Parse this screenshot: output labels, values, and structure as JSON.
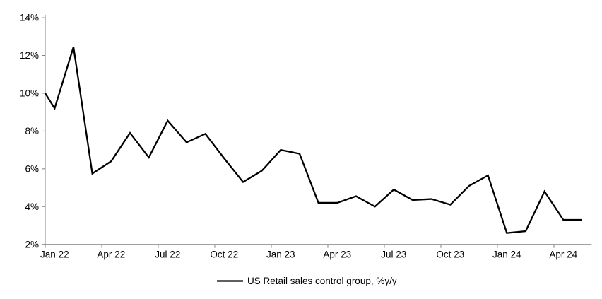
{
  "chart_data": {
    "type": "line",
    "title": "",
    "legend_label": "US Retail sales control group, %y/y",
    "legend_position": "bottom-center",
    "grid": "off",
    "ylim": [
      2,
      14
    ],
    "x": [
      "Jan 22",
      "Feb 22",
      "Mar 22",
      "Apr 22",
      "May 22",
      "Jun 22",
      "Jul 22",
      "Aug 22",
      "Sep 22",
      "Oct 22",
      "Nov 22",
      "Dec 22",
      "Jan 23",
      "Feb 23",
      "Mar 23",
      "Apr 23",
      "May 23",
      "Jun 23",
      "Jul 23",
      "Aug 23",
      "Sep 23",
      "Oct 23",
      "Nov 23",
      "Dec 23",
      "Jan 24",
      "Feb 24",
      "Mar 24",
      "Apr 24",
      "May 24"
    ],
    "series": [
      {
        "name": "US Retail sales control group, %y/y",
        "color": "#000000",
        "values": [
          9.2,
          12.45,
          5.75,
          6.4,
          7.9,
          6.6,
          8.55,
          7.4,
          7.85,
          6.55,
          5.3,
          5.9,
          7.0,
          6.8,
          4.2,
          4.2,
          4.55,
          4.0,
          4.9,
          4.35,
          4.4,
          4.1,
          5.1,
          5.65,
          2.6,
          2.7,
          4.8,
          3.3,
          3.3
        ]
      }
    ],
    "entry_value_at_left_edge": 10.0,
    "y_ticks": [
      {
        "value": 2,
        "label": "2%"
      },
      {
        "value": 4,
        "label": "4%"
      },
      {
        "value": 6,
        "label": "6%"
      },
      {
        "value": 8,
        "label": "8%"
      },
      {
        "value": 10,
        "label": "10%"
      },
      {
        "value": 12,
        "label": "12%"
      },
      {
        "value": 14,
        "label": "14%"
      }
    ],
    "x_ticks": [
      {
        "month_index": 0,
        "label": "Jan 22"
      },
      {
        "month_index": 3,
        "label": "Apr 22"
      },
      {
        "month_index": 6,
        "label": "Jul 22"
      },
      {
        "month_index": 9,
        "label": "Oct 22"
      },
      {
        "month_index": 12,
        "label": "Jan 23"
      },
      {
        "month_index": 15,
        "label": "Apr 23"
      },
      {
        "month_index": 18,
        "label": "Jul 23"
      },
      {
        "month_index": 21,
        "label": "Oct 23"
      },
      {
        "month_index": 24,
        "label": "Jan 24"
      },
      {
        "month_index": 27,
        "label": "Apr 24"
      }
    ],
    "colors": {
      "line": "#000000",
      "axis": "#808080",
      "text": "#000000",
      "background": "#ffffff"
    }
  }
}
